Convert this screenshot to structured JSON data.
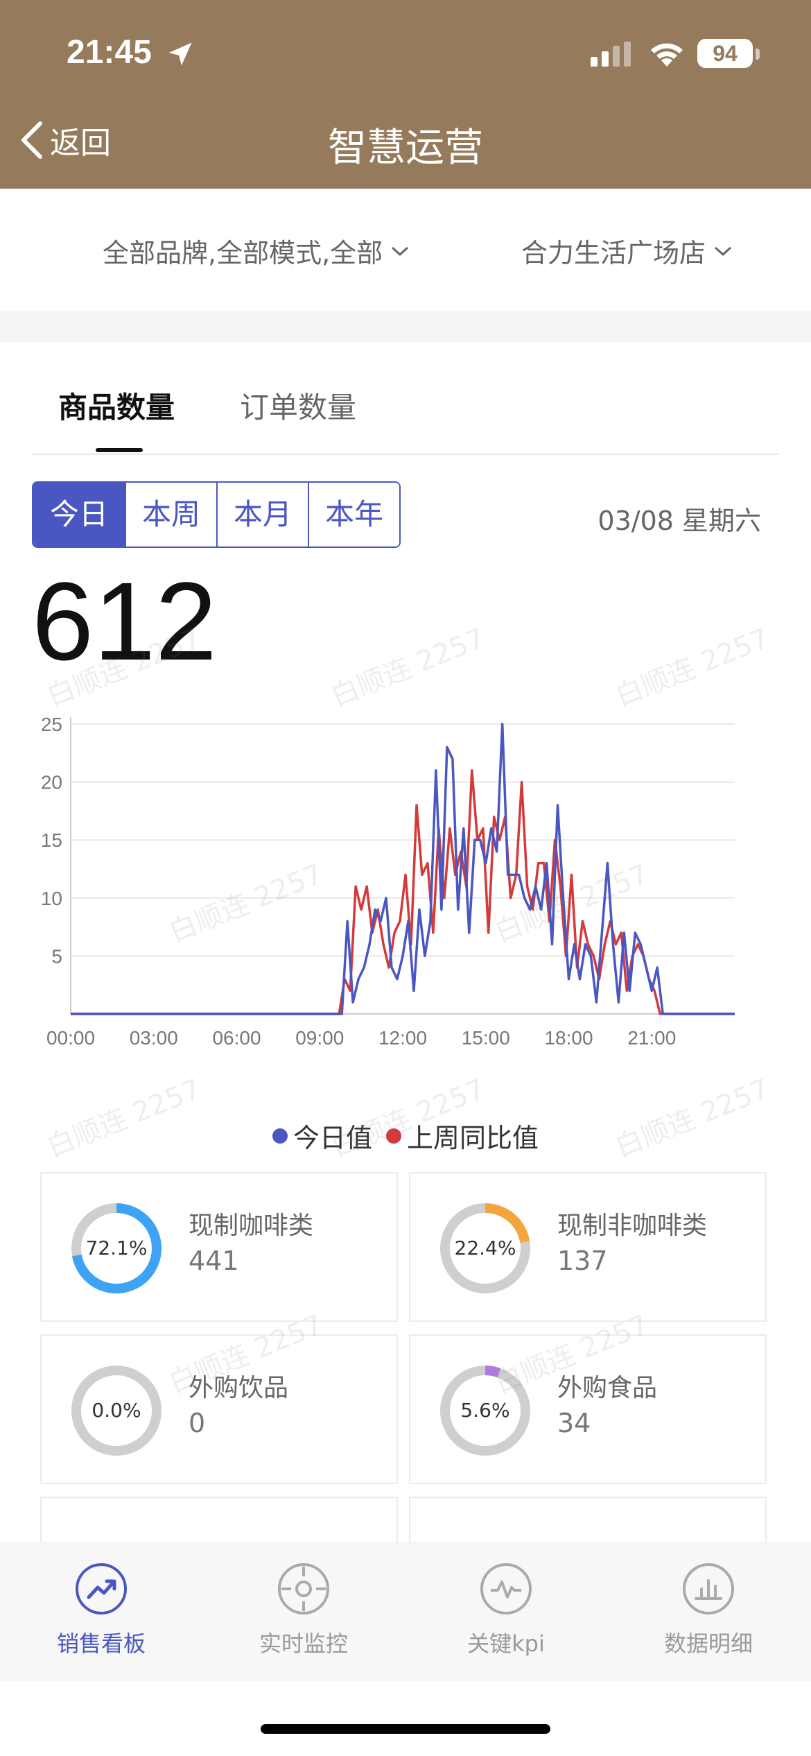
{
  "status": {
    "time": "21:45",
    "battery": "94"
  },
  "nav": {
    "back_label": "返回",
    "title": "智慧运营"
  },
  "filters": {
    "brand": "全部品牌,全部模式,全部",
    "store": "合力生活广场店"
  },
  "tabs": [
    {
      "label": "商品数量",
      "active": true
    },
    {
      "label": "订单数量",
      "active": false
    }
  ],
  "period": {
    "options": [
      "今日",
      "本周",
      "本月",
      "本年"
    ],
    "selected": "今日",
    "date": "03/08 星期六"
  },
  "total": "612",
  "chart_data": {
    "type": "line",
    "x_ticks": [
      "00:00",
      "03:00",
      "06:00",
      "09:00",
      "12:00",
      "15:00",
      "18:00",
      "21:00"
    ],
    "y_ticks": [
      "5",
      "10",
      "15",
      "20",
      "25"
    ],
    "ylim": [
      0,
      25
    ],
    "xlim": [
      0,
      24
    ],
    "grid": true,
    "legend_position": "bottom",
    "series": [
      {
        "name": "今日值",
        "color": "#4a56c2",
        "x": [
          0,
          9.8,
          10.0,
          10.2,
          10.4,
          10.6,
          10.8,
          11.0,
          11.2,
          11.4,
          11.6,
          11.8,
          12.0,
          12.2,
          12.4,
          12.6,
          12.8,
          13.0,
          13.2,
          13.4,
          13.6,
          13.8,
          14.0,
          14.2,
          14.4,
          14.6,
          14.8,
          15.0,
          15.2,
          15.4,
          15.6,
          15.8,
          16.0,
          16.2,
          16.4,
          16.6,
          16.8,
          17.0,
          17.2,
          17.4,
          17.6,
          17.8,
          18.0,
          18.2,
          18.4,
          18.6,
          18.8,
          19.0,
          19.2,
          19.4,
          19.6,
          19.8,
          20.0,
          20.2,
          20.4,
          20.6,
          20.8,
          21.0,
          21.2,
          21.4,
          21.6,
          22.0,
          24
        ],
        "y": [
          0,
          0,
          8,
          1,
          3,
          4,
          6,
          9,
          8,
          10,
          4,
          3,
          5,
          8,
          2,
          9,
          5,
          8,
          21,
          9,
          23,
          22,
          9,
          16,
          7,
          15,
          15,
          13,
          16,
          14,
          25,
          12,
          12,
          12,
          10,
          9,
          11,
          9,
          13,
          6,
          18,
          10,
          3,
          6,
          3,
          6,
          5,
          1,
          7,
          13,
          6,
          1,
          7,
          2,
          7,
          6,
          4,
          2,
          4,
          0,
          0,
          0,
          0
        ]
      },
      {
        "name": "上周同比值",
        "color": "#d43a3a",
        "x": [
          0,
          9.7,
          9.9,
          10.1,
          10.3,
          10.5,
          10.7,
          10.9,
          11.1,
          11.3,
          11.5,
          11.7,
          11.9,
          12.1,
          12.3,
          12.5,
          12.7,
          12.9,
          13.1,
          13.3,
          13.5,
          13.7,
          13.9,
          14.1,
          14.3,
          14.5,
          14.7,
          14.9,
          15.1,
          15.3,
          15.5,
          15.7,
          15.9,
          16.1,
          16.3,
          16.5,
          16.7,
          16.9,
          17.1,
          17.3,
          17.5,
          17.7,
          17.9,
          18.1,
          18.3,
          18.5,
          18.7,
          18.9,
          19.1,
          19.3,
          19.5,
          19.7,
          19.9,
          20.1,
          20.3,
          20.5,
          20.7,
          20.9,
          21.1,
          21.3,
          22.0,
          24
        ],
        "y": [
          0,
          0,
          3,
          2,
          11,
          9,
          11,
          7,
          9,
          6,
          4,
          7,
          8,
          12,
          6,
          18,
          12,
          13,
          7,
          16,
          10,
          16,
          12,
          14,
          11,
          21,
          15,
          16,
          7,
          17,
          15,
          17,
          10,
          12,
          20,
          11,
          9,
          13,
          13,
          8,
          15,
          11,
          5,
          12,
          4,
          8,
          6,
          5,
          3,
          6,
          8,
          6,
          7,
          2,
          5,
          6,
          5,
          3,
          2,
          0,
          0,
          0
        ]
      }
    ]
  },
  "legend": {
    "today": "今日值",
    "last_week": "上周同比值"
  },
  "categories": [
    {
      "name": "现制咖啡类",
      "value": "441",
      "percent_label": "72.1%",
      "percent": 72.1,
      "color": "#3fa3f5"
    },
    {
      "name": "现制非咖啡类",
      "value": "137",
      "percent_label": "22.4%",
      "percent": 22.4,
      "color": "#f4a53b"
    },
    {
      "name": "外购饮品",
      "value": "0",
      "percent_label": "0.0%",
      "percent": 0.0,
      "color": "#cccccc"
    },
    {
      "name": "外购食品",
      "value": "34",
      "percent_label": "5.6%",
      "percent": 5.6,
      "color": "#b07ae0"
    }
  ],
  "watermark": "白顺连 2257",
  "tabbar": [
    {
      "label": "销售看板",
      "icon": "trend-up-icon",
      "active": true
    },
    {
      "label": "实时监控",
      "icon": "crosshair-icon",
      "active": false
    },
    {
      "label": "关键kpi",
      "icon": "pulse-icon",
      "active": false
    },
    {
      "label": "数据明细",
      "icon": "bar-chart-icon",
      "active": false
    }
  ]
}
